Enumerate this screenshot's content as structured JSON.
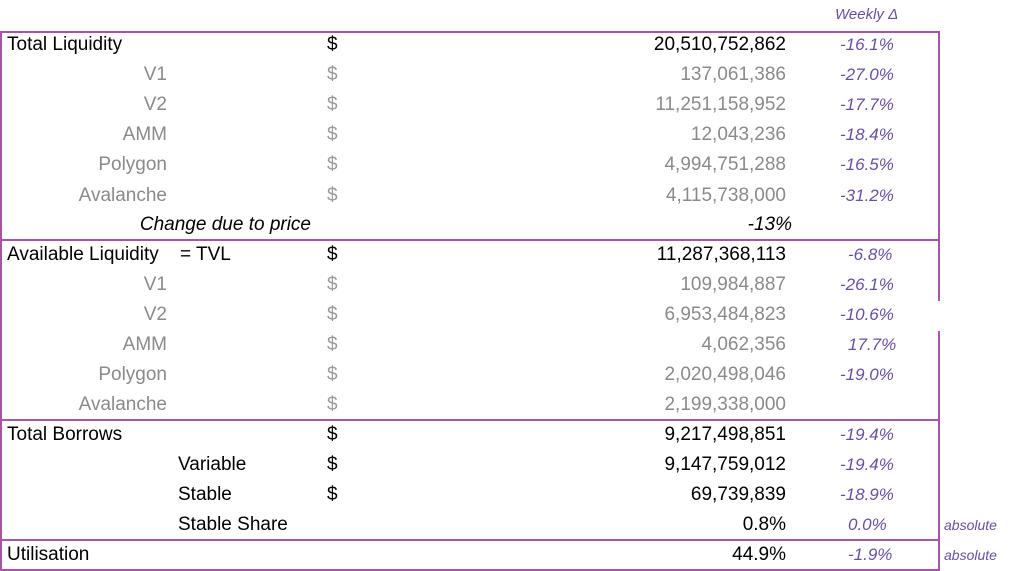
{
  "header": {
    "weekly_change": "Weekly Δ"
  },
  "rows": [
    {
      "label": "Total Liquidity",
      "currency": "$",
      "value": "20,510,752,862",
      "change": "-16.1%"
    },
    {
      "label": "V1",
      "currency": "$",
      "value": "137,061,386",
      "change": "-27.0%"
    },
    {
      "label": "V2",
      "currency": "$",
      "value": "11,251,158,952",
      "change": "-17.7%"
    },
    {
      "label": "AMM",
      "currency": "$",
      "value": "12,043,236",
      "change": "-18.4%"
    },
    {
      "label": "Polygon",
      "currency": "$",
      "value": "4,994,751,288",
      "change": "-16.5%"
    },
    {
      "label": "Avalanche",
      "currency": "$",
      "value": "4,115,738,000",
      "change": "-31.2%"
    },
    {
      "label": "Change due to price",
      "value": "-13%"
    },
    {
      "label": "Available Liquidity",
      "suffix": "= TVL",
      "currency": "$",
      "value": "11,287,368,113",
      "change": "-6.8%"
    },
    {
      "label": "V1",
      "currency": "$",
      "value": "109,984,887",
      "change": "-26.1%"
    },
    {
      "label": "V2",
      "currency": "$",
      "value": "6,953,484,823",
      "change": "-10.6%"
    },
    {
      "label": "AMM",
      "currency": "$",
      "value": "4,062,356",
      "change": "17.7%"
    },
    {
      "label": "Polygon",
      "currency": "$",
      "value": "2,020,498,046",
      "change": "-19.0%"
    },
    {
      "label": "Avalanche",
      "currency": "$",
      "value": "2,199,338,000"
    },
    {
      "label": "Total Borrows",
      "currency": "$",
      "value": "9,217,498,851",
      "change": "-19.4%"
    },
    {
      "label": "Variable",
      "currency": "$",
      "value": "9,147,759,012",
      "change": "-19.4%"
    },
    {
      "label": "Stable",
      "currency": "$",
      "value": "69,739,839",
      "change": "-18.9%"
    },
    {
      "label": "Stable Share",
      "value": "0.8%",
      "change": "0.0%",
      "note": "absolute"
    },
    {
      "label": "Utilisation",
      "value": "44.9%",
      "change": "-1.9%",
      "note": "absolute"
    }
  ],
  "colors": {
    "border": "#a653a9",
    "accent": "#6a4ea0",
    "muted": "#8a8a8a"
  }
}
